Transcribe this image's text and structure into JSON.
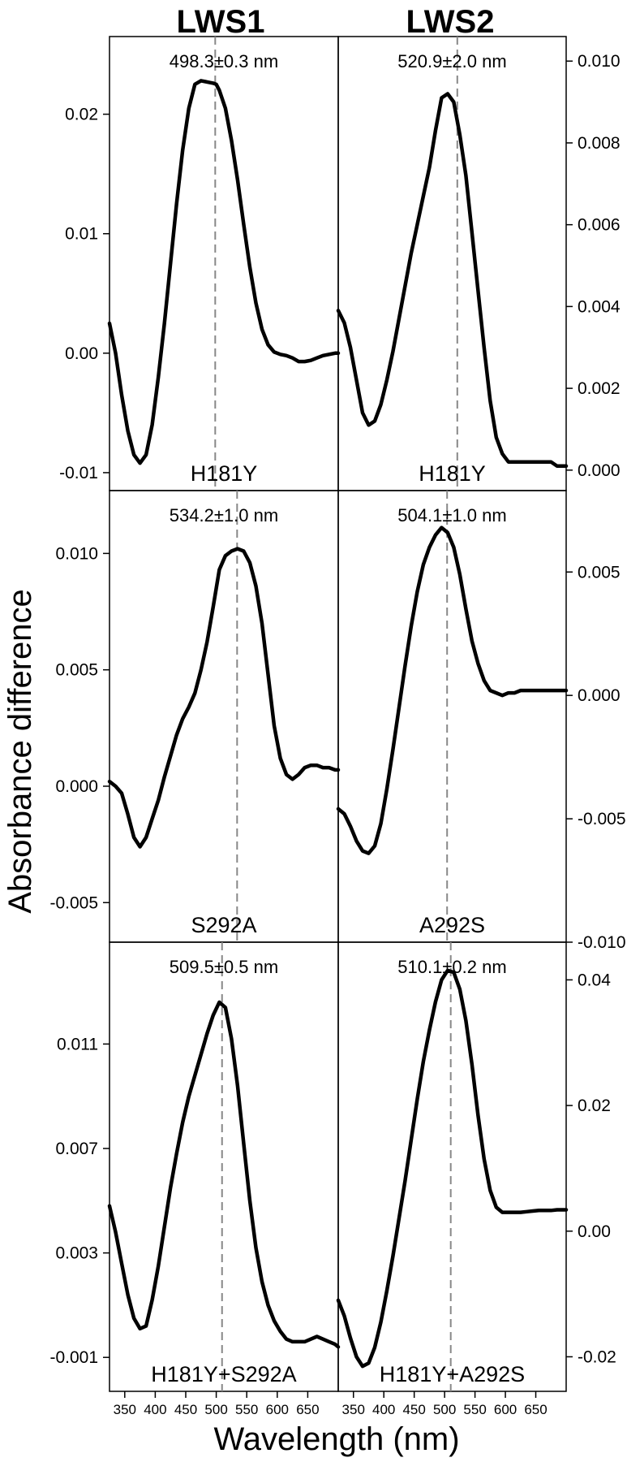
{
  "chart_data": {
    "type": "line",
    "column_titles": [
      "LWS1",
      "LWS2"
    ],
    "ylabel": "Absorbance difference",
    "xlabel": "Wavelength (nm)",
    "x_ticks": [
      350,
      400,
      450,
      500,
      550,
      600,
      650
    ],
    "xlim": [
      325,
      700
    ],
    "panels": [
      {
        "row": 0,
        "col": 0,
        "peak_label": "498.3±0.3 nm",
        "peak_nm": 498.3,
        "mutant": "H181Y",
        "ylim": [
          -0.0115,
          0.0265
        ],
        "yticks": [
          -0.01,
          0.0,
          0.01,
          0.02
        ],
        "ytick_labels": [
          "-0.01",
          "0.00",
          "0.01",
          "0.02"
        ],
        "axis_side": "left",
        "x": [
          325,
          335,
          345,
          355,
          365,
          375,
          385,
          395,
          405,
          415,
          425,
          435,
          445,
          455,
          465,
          475,
          485,
          495,
          500,
          505,
          515,
          525,
          535,
          545,
          555,
          565,
          575,
          585,
          595,
          605,
          615,
          625,
          635,
          645,
          655,
          665,
          675,
          685,
          695,
          700
        ],
        "y": [
          0.0025,
          0.0,
          -0.0035,
          -0.0065,
          -0.0085,
          -0.0092,
          -0.0085,
          -0.006,
          -0.002,
          0.0025,
          0.0075,
          0.0125,
          0.017,
          0.0205,
          0.0225,
          0.0228,
          0.0227,
          0.0226,
          0.0225,
          0.022,
          0.0205,
          0.0178,
          0.0145,
          0.0108,
          0.0072,
          0.0042,
          0.002,
          0.0007,
          0.0001,
          -0.0001,
          -0.0002,
          -0.0004,
          -0.0007,
          -0.0007,
          -0.0006,
          -0.0004,
          -0.0002,
          -0.0001,
          0.0,
          0.0
        ]
      },
      {
        "row": 0,
        "col": 1,
        "peak_label": "520.9±2.0 nm",
        "peak_nm": 520.9,
        "mutant": "H181Y",
        "ylim": [
          -0.0005,
          0.0106
        ],
        "yticks": [
          0.0,
          0.002,
          0.004,
          0.006,
          0.008,
          0.01
        ],
        "ytick_labels": [
          "0.000",
          "0.002",
          "0.004",
          "0.006",
          "0.008",
          "0.010"
        ],
        "axis_side": "right",
        "x": [
          325,
          335,
          345,
          355,
          365,
          375,
          385,
          395,
          405,
          415,
          425,
          435,
          445,
          455,
          465,
          475,
          485,
          495,
          505,
          515,
          525,
          535,
          545,
          555,
          565,
          575,
          585,
          595,
          605,
          615,
          625,
          635,
          645,
          655,
          665,
          675,
          685,
          695,
          700
        ],
        "y": [
          0.0039,
          0.0036,
          0.003,
          0.0022,
          0.0014,
          0.0011,
          0.0012,
          0.0016,
          0.0022,
          0.0029,
          0.0037,
          0.0045,
          0.0053,
          0.006,
          0.0067,
          0.0074,
          0.0083,
          0.0091,
          0.0092,
          0.009,
          0.0082,
          0.0072,
          0.0058,
          0.0044,
          0.003,
          0.0017,
          0.0008,
          0.0004,
          0.0002,
          0.0002,
          0.0002,
          0.0002,
          0.0002,
          0.0002,
          0.0002,
          0.0002,
          0.0001,
          0.0001,
          0.0001
        ]
      },
      {
        "row": 1,
        "col": 0,
        "peak_label": "534.2±1.0 nm",
        "peak_nm": 534.2,
        "mutant": "S292A",
        "ylim": [
          -0.0067,
          0.0127
        ],
        "yticks": [
          -0.005,
          0.0,
          0.005,
          0.01
        ],
        "ytick_labels": [
          "-0.005",
          "0.000",
          "0.005",
          "0.010"
        ],
        "axis_side": "left",
        "x": [
          325,
          335,
          345,
          355,
          365,
          375,
          385,
          395,
          405,
          415,
          425,
          435,
          445,
          455,
          465,
          475,
          485,
          495,
          500,
          505,
          515,
          525,
          535,
          545,
          555,
          565,
          575,
          585,
          595,
          605,
          615,
          625,
          635,
          645,
          655,
          665,
          675,
          685,
          695,
          700
        ],
        "y": [
          0.0002,
          0.0,
          -0.0003,
          -0.0012,
          -0.0022,
          -0.0026,
          -0.0022,
          -0.0014,
          -0.0006,
          0.0004,
          0.0013,
          0.0022,
          0.0029,
          0.0034,
          0.004,
          0.005,
          0.0062,
          0.0077,
          0.0085,
          0.0093,
          0.0099,
          0.0101,
          0.0102,
          0.0101,
          0.0096,
          0.0086,
          0.007,
          0.0048,
          0.0026,
          0.0012,
          0.0005,
          0.0003,
          0.0005,
          0.0008,
          0.0009,
          0.0009,
          0.0008,
          0.0008,
          0.0007,
          0.0007
        ]
      },
      {
        "row": 1,
        "col": 1,
        "peak_label": "504.1±1.0 nm",
        "peak_nm": 504.1,
        "mutant": "A292S",
        "ylim": [
          -0.01,
          0.0083
        ],
        "yticks": [
          -0.01,
          -0.005,
          0.0,
          0.005
        ],
        "ytick_labels": [
          "-0.010",
          "-0.005",
          "0.000",
          "0.005"
        ],
        "axis_side": "right",
        "x": [
          325,
          335,
          345,
          355,
          365,
          375,
          385,
          395,
          405,
          415,
          425,
          435,
          445,
          455,
          465,
          475,
          485,
          495,
          505,
          515,
          525,
          535,
          545,
          555,
          565,
          575,
          585,
          595,
          605,
          615,
          625,
          635,
          645,
          655,
          665,
          675,
          685,
          695,
          700
        ],
        "y": [
          -0.0046,
          -0.0048,
          -0.0053,
          -0.0059,
          -0.0063,
          -0.0064,
          -0.0061,
          -0.0052,
          -0.0038,
          -0.0022,
          -0.0005,
          0.0012,
          0.0028,
          0.0042,
          0.0053,
          0.006,
          0.0065,
          0.0068,
          0.0066,
          0.006,
          0.0049,
          0.0035,
          0.0022,
          0.0013,
          0.0006,
          0.0002,
          0.0001,
          0.0,
          0.0001,
          0.0001,
          0.0002,
          0.0002,
          0.0002,
          0.0002,
          0.0002,
          0.0002,
          0.0002,
          0.0002,
          0.0002
        ]
      },
      {
        "row": 2,
        "col": 0,
        "peak_label": "509.5±0.5 nm",
        "peak_nm": 509.5,
        "mutant": "H181Y+S292A",
        "ylim": [
          -0.0023,
          0.0149
        ],
        "yticks": [
          -0.001,
          0.003,
          0.007,
          0.011
        ],
        "ytick_labels": [
          "-0.001",
          "0.003",
          "0.007",
          "0.011"
        ],
        "axis_side": "left",
        "x": [
          325,
          335,
          345,
          355,
          365,
          375,
          385,
          395,
          405,
          415,
          425,
          435,
          445,
          455,
          465,
          475,
          485,
          495,
          505,
          515,
          525,
          535,
          545,
          555,
          565,
          575,
          585,
          595,
          605,
          615,
          625,
          635,
          645,
          655,
          665,
          675,
          685,
          695,
          700
        ],
        "y": [
          0.0048,
          0.0038,
          0.0026,
          0.0014,
          0.0005,
          0.0001,
          0.0002,
          0.0012,
          0.0025,
          0.004,
          0.0055,
          0.0068,
          0.008,
          0.009,
          0.0098,
          0.0106,
          0.0114,
          0.0121,
          0.0126,
          0.0124,
          0.0112,
          0.0094,
          0.0072,
          0.005,
          0.0032,
          0.0019,
          0.001,
          0.0004,
          0.0,
          -0.0003,
          -0.0004,
          -0.0004,
          -0.0004,
          -0.0003,
          -0.0002,
          -0.0003,
          -0.0004,
          -0.0005,
          -0.0006
        ]
      },
      {
        "row": 2,
        "col": 1,
        "peak_label": "510.1±0.2 nm",
        "peak_nm": 510.1,
        "mutant": "H181Y+A292S",
        "ylim": [
          -0.0255,
          0.046
        ],
        "yticks": [
          -0.02,
          0.0,
          0.02,
          0.04
        ],
        "ytick_labels": [
          "-0.02",
          "0.00",
          "0.02",
          "0.04"
        ],
        "axis_side": "right",
        "x": [
          325,
          335,
          345,
          355,
          365,
          375,
          385,
          395,
          405,
          415,
          425,
          435,
          445,
          455,
          465,
          475,
          485,
          495,
          505,
          515,
          525,
          535,
          545,
          555,
          565,
          575,
          585,
          595,
          605,
          615,
          625,
          635,
          645,
          655,
          665,
          675,
          685,
          695,
          700
        ],
        "y": [
          -0.011,
          -0.0135,
          -0.017,
          -0.02,
          -0.0215,
          -0.021,
          -0.0185,
          -0.0145,
          -0.0095,
          -0.004,
          0.002,
          0.008,
          0.0145,
          0.021,
          0.027,
          0.032,
          0.0365,
          0.04,
          0.0415,
          0.0412,
          0.0385,
          0.0335,
          0.0265,
          0.0185,
          0.0115,
          0.0065,
          0.0038,
          0.003,
          0.003,
          0.003,
          0.003,
          0.0031,
          0.0032,
          0.0033,
          0.0033,
          0.0033,
          0.0034,
          0.0034,
          0.0034
        ]
      }
    ]
  }
}
